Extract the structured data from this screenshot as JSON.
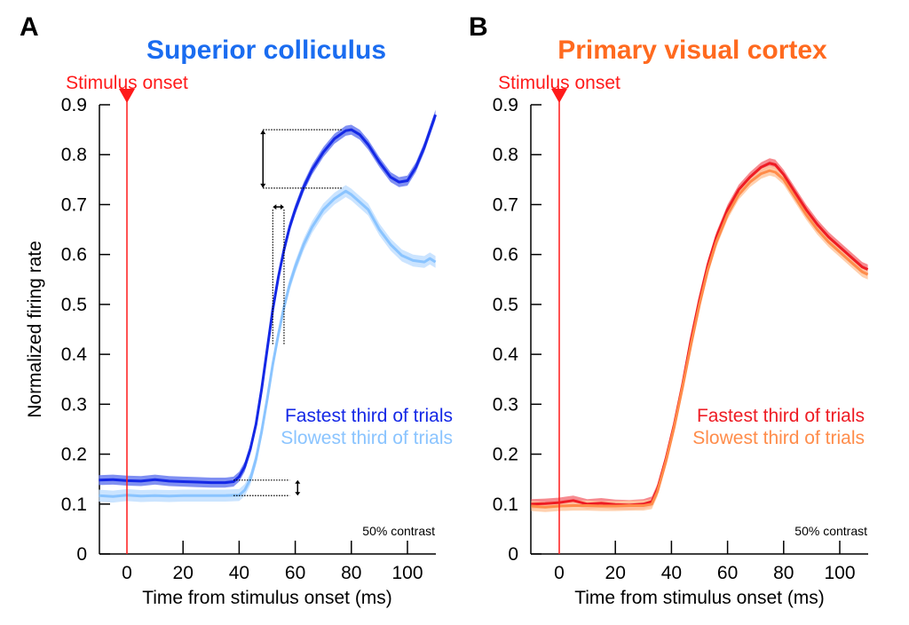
{
  "chart_data": [
    {
      "type": "line",
      "panel_letter": "A",
      "title": "Superior colliculus",
      "title_color": "#1a6cf0",
      "xlabel": "Time from stimulus onset (ms)",
      "ylabel": "Normalized firing rate",
      "xlim": [
        -10,
        110
      ],
      "ylim": [
        0,
        0.9
      ],
      "xticks": [
        0,
        20,
        40,
        60,
        80,
        100
      ],
      "yticks": [
        0,
        0.1,
        0.2,
        0.3,
        0.4,
        0.5,
        0.6,
        0.7,
        0.8,
        0.9
      ],
      "ytick_labels": [
        "0",
        "0.1",
        "0.2",
        "0.3",
        "0.4",
        "0.5",
        "0.6",
        "0.7",
        "0.8",
        "0.9"
      ],
      "grid": false,
      "onset_marker": {
        "label": "Stimulus onset",
        "x": 0,
        "color": "#ff1a1a"
      },
      "annotation": "50% contrast",
      "legend_position": "middle-right",
      "series": [
        {
          "name": "Fastest third of trials",
          "color": "#1428e6",
          "band_color": "#6a7cf0",
          "x": [
            -10,
            -5,
            0,
            5,
            10,
            15,
            20,
            25,
            30,
            35,
            38,
            40,
            42,
            44,
            46,
            48,
            50,
            52,
            54,
            56,
            58,
            60,
            63,
            66,
            70,
            74,
            78,
            80,
            83,
            86,
            90,
            94,
            97,
            100,
            103,
            106,
            110
          ],
          "y": [
            0.148,
            0.149,
            0.147,
            0.146,
            0.149,
            0.146,
            0.145,
            0.144,
            0.143,
            0.143,
            0.145,
            0.155,
            0.175,
            0.21,
            0.26,
            0.33,
            0.41,
            0.49,
            0.555,
            0.61,
            0.655,
            0.69,
            0.735,
            0.77,
            0.805,
            0.832,
            0.848,
            0.85,
            0.84,
            0.82,
            0.785,
            0.755,
            0.745,
            0.748,
            0.775,
            0.815,
            0.88
          ],
          "band_halfwidth": 0.01
        },
        {
          "name": "Slowest third of trials",
          "color": "#8ac4ff",
          "band_color": "#c2dfff",
          "x": [
            -10,
            -5,
            0,
            5,
            10,
            15,
            20,
            25,
            30,
            35,
            40,
            42,
            44,
            46,
            48,
            50,
            52,
            54,
            56,
            58,
            60,
            63,
            66,
            70,
            74,
            78,
            80,
            83,
            86,
            90,
            94,
            98,
            102,
            106,
            108,
            110
          ],
          "y": [
            0.117,
            0.115,
            0.118,
            0.116,
            0.117,
            0.116,
            0.117,
            0.117,
            0.117,
            0.117,
            0.118,
            0.128,
            0.15,
            0.19,
            0.245,
            0.31,
            0.38,
            0.44,
            0.495,
            0.54,
            0.575,
            0.62,
            0.655,
            0.69,
            0.712,
            0.727,
            0.72,
            0.705,
            0.69,
            0.65,
            0.62,
            0.598,
            0.588,
            0.585,
            0.592,
            0.585
          ],
          "band_halfwidth": 0.012
        }
      ],
      "dotted_annotations": [
        {
          "kind": "baseline-difference",
          "y_from": 0.148,
          "y_to": 0.117
        },
        {
          "kind": "latency-difference",
          "x_from": 52,
          "x_to": 56
        },
        {
          "kind": "peak-difference",
          "y_from": 0.85,
          "y_to": 0.733
        }
      ]
    },
    {
      "type": "line",
      "panel_letter": "B",
      "title": "Primary visual cortex",
      "title_color": "#ff6a1f",
      "xlabel": "Time from stimulus onset (ms)",
      "ylabel": "",
      "xlim": [
        -10,
        110
      ],
      "ylim": [
        0,
        0.9
      ],
      "xticks": [
        0,
        20,
        40,
        60,
        80,
        100
      ],
      "yticks": [
        0,
        0.1,
        0.2,
        0.3,
        0.4,
        0.5,
        0.6,
        0.7,
        0.8,
        0.9
      ],
      "ytick_labels": [
        "0",
        "0.1",
        "0.2",
        "0.3",
        "0.4",
        "0.5",
        "0.6",
        "0.7",
        "0.8",
        "0.9"
      ],
      "grid": false,
      "onset_marker": {
        "label": "Stimulus onset",
        "x": 0,
        "color": "#ff1a1a"
      },
      "annotation": "50% contrast",
      "legend_position": "middle-right",
      "series": [
        {
          "name": "Fastest third of trials",
          "color": "#ee1c24",
          "band_color": "#f4777c",
          "x": [
            -10,
            -5,
            0,
            5,
            10,
            15,
            20,
            25,
            30,
            33,
            35,
            38,
            41,
            44,
            47,
            50,
            53,
            56,
            60,
            64,
            68,
            72,
            75,
            77,
            80,
            84,
            88,
            92,
            96,
            100,
            104,
            108,
            110
          ],
          "y": [
            0.1,
            0.101,
            0.103,
            0.107,
            0.1,
            0.102,
            0.099,
            0.098,
            0.1,
            0.105,
            0.13,
            0.19,
            0.26,
            0.34,
            0.43,
            0.51,
            0.58,
            0.635,
            0.69,
            0.73,
            0.755,
            0.775,
            0.783,
            0.78,
            0.76,
            0.725,
            0.69,
            0.66,
            0.635,
            0.615,
            0.595,
            0.575,
            0.57
          ],
          "band_halfwidth": 0.01
        },
        {
          "name": "Slowest third of trials",
          "color": "#ff8c4a",
          "band_color": "#ffc8a0",
          "x": [
            -10,
            -5,
            0,
            5,
            10,
            15,
            20,
            25,
            30,
            33,
            35,
            38,
            41,
            44,
            47,
            50,
            53,
            56,
            60,
            64,
            68,
            72,
            75,
            77,
            80,
            84,
            88,
            92,
            96,
            100,
            104,
            108,
            110
          ],
          "y": [
            0.096,
            0.094,
            0.096,
            0.097,
            0.097,
            0.096,
            0.096,
            0.097,
            0.097,
            0.1,
            0.125,
            0.185,
            0.255,
            0.335,
            0.42,
            0.5,
            0.57,
            0.625,
            0.68,
            0.72,
            0.745,
            0.762,
            0.768,
            0.765,
            0.75,
            0.715,
            0.68,
            0.65,
            0.625,
            0.605,
            0.585,
            0.565,
            0.56
          ],
          "band_halfwidth": 0.01
        }
      ]
    }
  ]
}
